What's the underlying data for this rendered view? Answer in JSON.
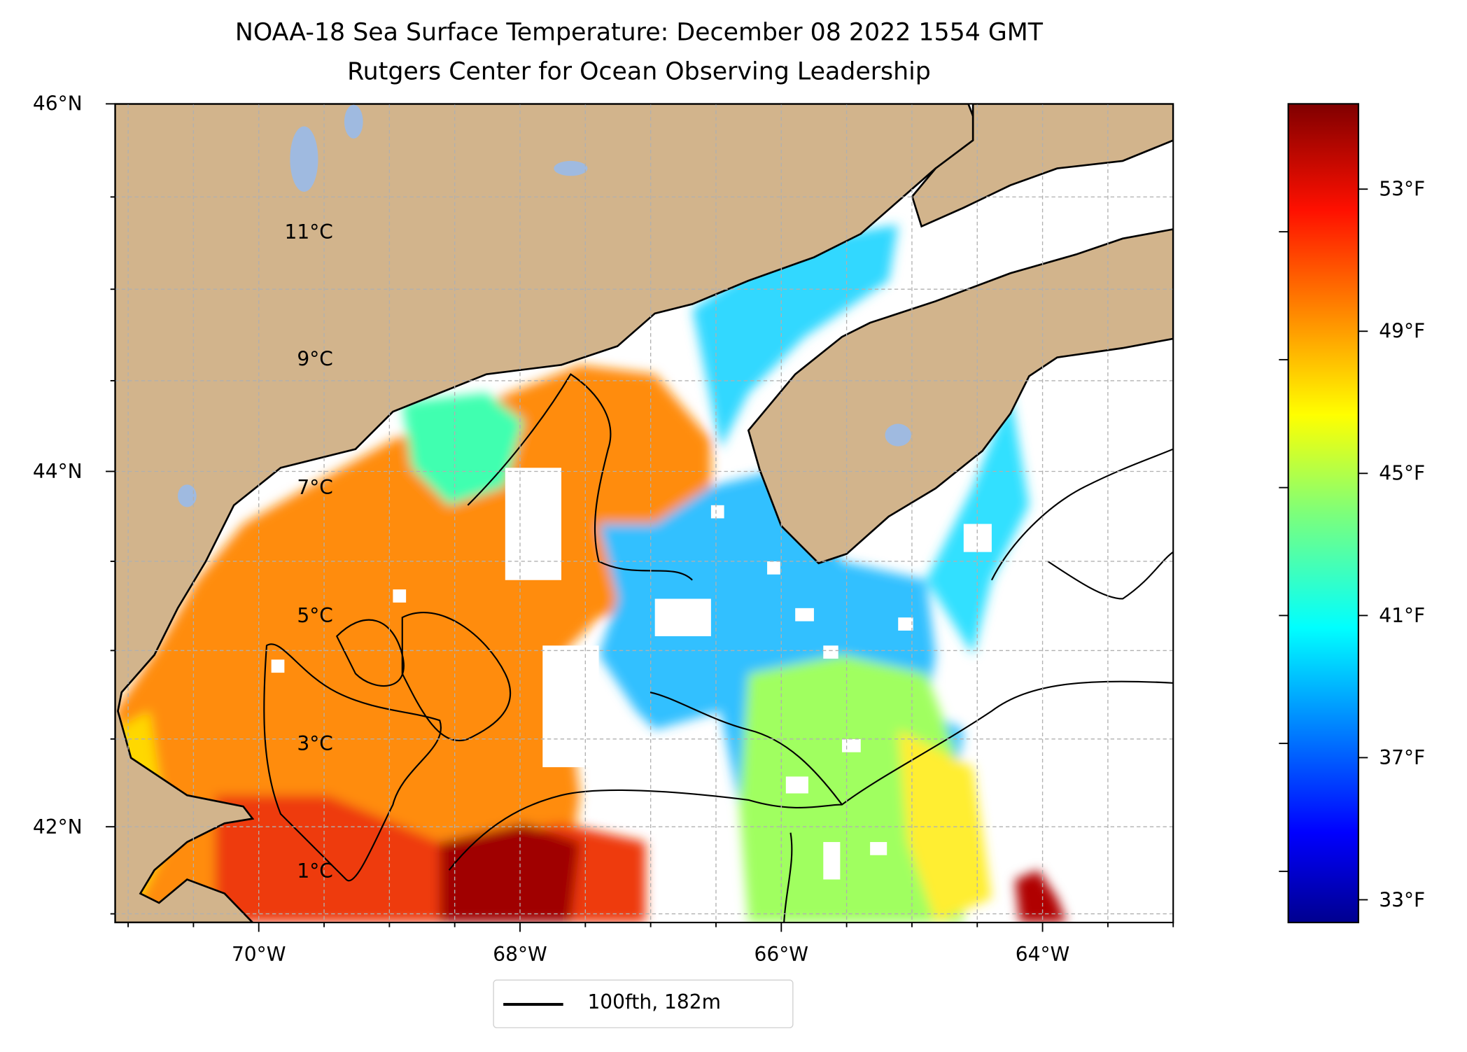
{
  "chart_data": {
    "type": "heatmap",
    "title": "NOAA-18 Sea Surface Temperature: December 08 2022 1554 GMT",
    "subtitle": "Rutgers Center for Ocean Observing Leadership",
    "xlabel": "",
    "ylabel": "",
    "lon_ticks": [
      {
        "value": -70,
        "label": "70°W"
      },
      {
        "value": -68,
        "label": "68°W"
      },
      {
        "value": -66,
        "label": "66°W"
      },
      {
        "value": -64,
        "label": "64°W"
      }
    ],
    "lat_ticks": [
      {
        "value": 46,
        "label": "46°N"
      },
      {
        "value": 44,
        "label": "44°N"
      },
      {
        "value": 42,
        "label": "42°N"
      }
    ],
    "xlim": [
      -71.1,
      -63.0
    ],
    "ylim": [
      41.45,
      46.0
    ],
    "grid": true,
    "colorbar": {
      "colormap": "jet",
      "range_c": [
        0.2,
        13.0
      ],
      "celsius_ticks": [
        {
          "value": 11,
          "label": "11°C"
        },
        {
          "value": 9,
          "label": "9°C"
        },
        {
          "value": 7,
          "label": "7°C"
        },
        {
          "value": 5,
          "label": "5°C"
        },
        {
          "value": 3,
          "label": "3°C"
        },
        {
          "value": 1,
          "label": "1°C"
        }
      ],
      "fahrenheit_ticks": [
        {
          "value": 53,
          "label": "53°F"
        },
        {
          "value": 49,
          "label": "49°F"
        },
        {
          "value": 45,
          "label": "45°F"
        },
        {
          "value": 41,
          "label": "41°F"
        },
        {
          "value": 37,
          "label": "37°F"
        },
        {
          "value": 33,
          "label": "33°F"
        }
      ]
    },
    "legend": {
      "entries": [
        {
          "label": "100fth, 182m",
          "style": "black line"
        }
      ],
      "placement": "below"
    },
    "colors": {
      "land": "#d2b48c",
      "lakes": "#9fbae0",
      "coastline": "#000000",
      "grid": "#b0b0b0"
    }
  }
}
